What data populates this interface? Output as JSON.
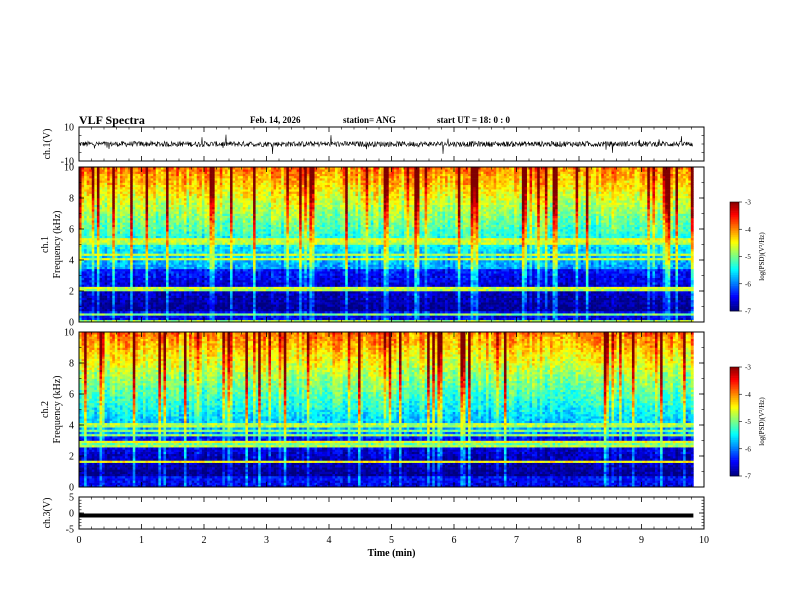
{
  "header": {
    "title": "VLF Spectra",
    "date": "Feb. 14, 2026",
    "station": "station= ANG",
    "start_time": "start  UT  =   18: 0   : 0"
  },
  "chart_data": [
    {
      "type": "line",
      "name": "ch1-waveform",
      "ylabel": "ch.1(V)",
      "ylim": [
        -10,
        10
      ],
      "yticks": [
        10,
        -10
      ],
      "xlim": [
        0,
        10
      ],
      "description_value_baseline": 0
    },
    {
      "type": "heatmap",
      "name": "ch1-spectrogram",
      "ylabel_line1": "ch.1",
      "ylabel_line2": "Frequency  (kHz)",
      "ylim": [
        0,
        10
      ],
      "yticks": [
        0,
        2,
        4,
        6,
        8,
        10
      ],
      "xlim": [
        0,
        9.83
      ],
      "colorbar": {
        "label": "log(PSD)(V²/Hz)",
        "ticks": [
          -3,
          -4,
          -5,
          -6,
          -7
        ],
        "range": [
          -7,
          -3
        ]
      }
    },
    {
      "type": "heatmap",
      "name": "ch2-spectrogram",
      "ylabel_line1": "ch.2",
      "ylabel_line2": "Frequency  (kHz)",
      "ylim": [
        0,
        10
      ],
      "yticks": [
        0,
        2,
        4,
        6,
        8,
        10
      ],
      "xlim": [
        0,
        9.83
      ],
      "colorbar": {
        "label": "log(PSD)(V²/Hz)",
        "ticks": [
          -3,
          -4,
          -5,
          -6,
          -7
        ],
        "range": [
          -7,
          -3
        ]
      }
    },
    {
      "type": "line",
      "name": "ch3-waveform",
      "ylabel": "ch.3(V)",
      "ylim": [
        -5,
        5
      ],
      "yticks": [
        5,
        0,
        -5
      ],
      "xlim": [
        0,
        10
      ],
      "xlabel": "Time  (min)",
      "xticks": [
        0,
        1,
        2,
        3,
        4,
        5,
        6,
        7,
        8,
        9,
        10
      ],
      "value": -0.8
    }
  ],
  "colors": {
    "waveform": "#000000",
    "spectro_low": "#00007f",
    "spectro_high": "#ff0000"
  }
}
